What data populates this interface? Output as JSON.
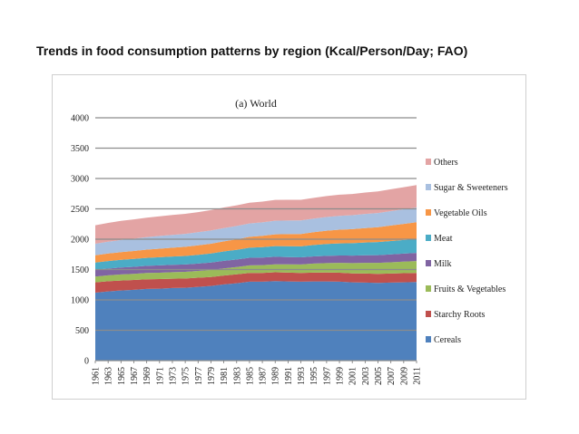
{
  "heading": "Trends in food consumption patterns by region (Kcal/Person/Day; FAO)",
  "chart_data": {
    "type": "area",
    "stacked": true,
    "title": "(a) World",
    "xlabel": "",
    "ylabel": "",
    "ylim": [
      0,
      4000
    ],
    "yticks": [
      0,
      500,
      1000,
      1500,
      2000,
      2500,
      3000,
      3500,
      4000
    ],
    "grid": true,
    "legend_position": "right",
    "x": [
      1961,
      1963,
      1965,
      1967,
      1969,
      1971,
      1973,
      1975,
      1977,
      1979,
      1981,
      1983,
      1985,
      1987,
      1989,
      1991,
      1993,
      1995,
      1997,
      1999,
      2001,
      2003,
      2005,
      2007,
      2009,
      2011
    ],
    "series": [
      {
        "name": "Cereals",
        "color": "#4f81bd",
        "values": [
          1120,
          1140,
          1155,
          1165,
          1180,
          1185,
          1195,
          1200,
          1215,
          1230,
          1255,
          1275,
          1300,
          1300,
          1310,
          1305,
          1300,
          1305,
          1305,
          1300,
          1290,
          1285,
          1280,
          1285,
          1290,
          1295
        ]
      },
      {
        "name": "Starchy Roots",
        "color": "#c0504d",
        "values": [
          170,
          168,
          165,
          163,
          160,
          158,
          155,
          152,
          150,
          148,
          147,
          146,
          145,
          145,
          145,
          144,
          144,
          145,
          146,
          148,
          148,
          150,
          150,
          150,
          150,
          150
        ]
      },
      {
        "name": "Fruits & Vegetables",
        "color": "#9bbb59",
        "values": [
          95,
          97,
          99,
          101,
          103,
          105,
          107,
          110,
          112,
          115,
          118,
          121,
          124,
          128,
          132,
          136,
          140,
          148,
          155,
          162,
          168,
          175,
          180,
          185,
          190,
          195
        ]
      },
      {
        "name": "Milk",
        "color": "#8064a2",
        "values": [
          110,
          112,
          114,
          116,
          118,
          120,
          120,
          121,
          122,
          123,
          124,
          124,
          125,
          125,
          124,
          120,
          118,
          118,
          120,
          122,
          124,
          126,
          128,
          130,
          132,
          135
        ]
      },
      {
        "name": "Meat",
        "color": "#4bacc6",
        "values": [
          120,
          123,
          126,
          129,
          132,
          135,
          138,
          141,
          145,
          150,
          155,
          160,
          165,
          170,
          175,
          178,
          180,
          188,
          195,
          200,
          205,
          210,
          215,
          220,
          225,
          230
        ]
      },
      {
        "name": "Vegetable Oils",
        "color": "#f79646",
        "values": [
          120,
          124,
          128,
          132,
          136,
          140,
          145,
          150,
          155,
          160,
          165,
          172,
          180,
          188,
          195,
          200,
          205,
          212,
          220,
          225,
          230,
          238,
          245,
          255,
          265,
          275
        ]
      },
      {
        "name": "Sugar & Sweeteners",
        "color": "#a9c0e0",
        "values": [
          190,
          195,
          200,
          203,
          206,
          210,
          212,
          214,
          216,
          218,
          220,
          220,
          220,
          222,
          224,
          224,
          222,
          223,
          225,
          228,
          230,
          232,
          234,
          237,
          240,
          242
        ]
      },
      {
        "name": "Others",
        "color": "#e3a4a4",
        "values": [
          305,
          310,
          315,
          318,
          320,
          325,
          328,
          330,
          332,
          335,
          338,
          340,
          342,
          342,
          343,
          342,
          340,
          342,
          345,
          348,
          350,
          352,
          355,
          360,
          365,
          370
        ]
      }
    ]
  }
}
